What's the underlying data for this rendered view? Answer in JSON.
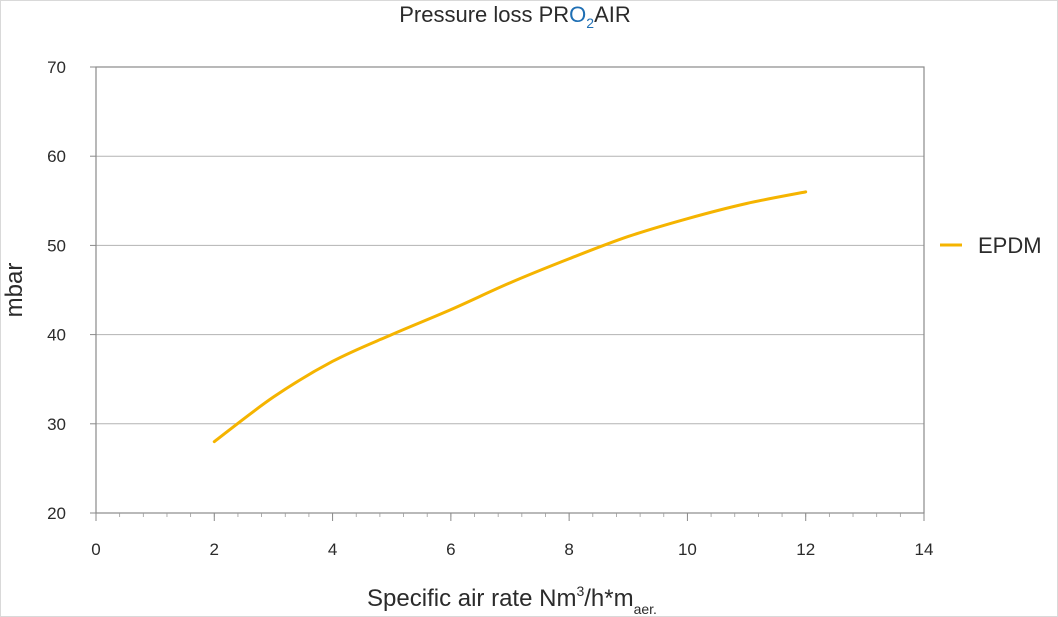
{
  "chart_data": {
    "type": "line",
    "title": {
      "prefix": "Pressure loss ",
      "brand_pr": "PR",
      "brand_o": "O",
      "brand_sub": "2",
      "brand_air": "AIR"
    },
    "xlabel": {
      "main": "Specific air rate Nm",
      "sup": "3",
      "mid": "/h*m",
      "sub": "aer."
    },
    "ylabel": "mbar",
    "xlim": [
      0,
      14
    ],
    "ylim": [
      20,
      70
    ],
    "xticks": [
      0,
      2,
      4,
      6,
      8,
      10,
      12,
      14
    ],
    "yticks": [
      20,
      30,
      40,
      50,
      60,
      70
    ],
    "grid": "horizontal",
    "legend_position": "right",
    "series": [
      {
        "name": "EPDM",
        "color": "#f5b400",
        "x": [
          2,
          3,
          4,
          5,
          6,
          7,
          8,
          9,
          10,
          11,
          12
        ],
        "y": [
          28,
          33,
          37,
          40,
          42.8,
          45.8,
          48.5,
          51,
          53,
          54.7,
          56
        ]
      }
    ]
  }
}
